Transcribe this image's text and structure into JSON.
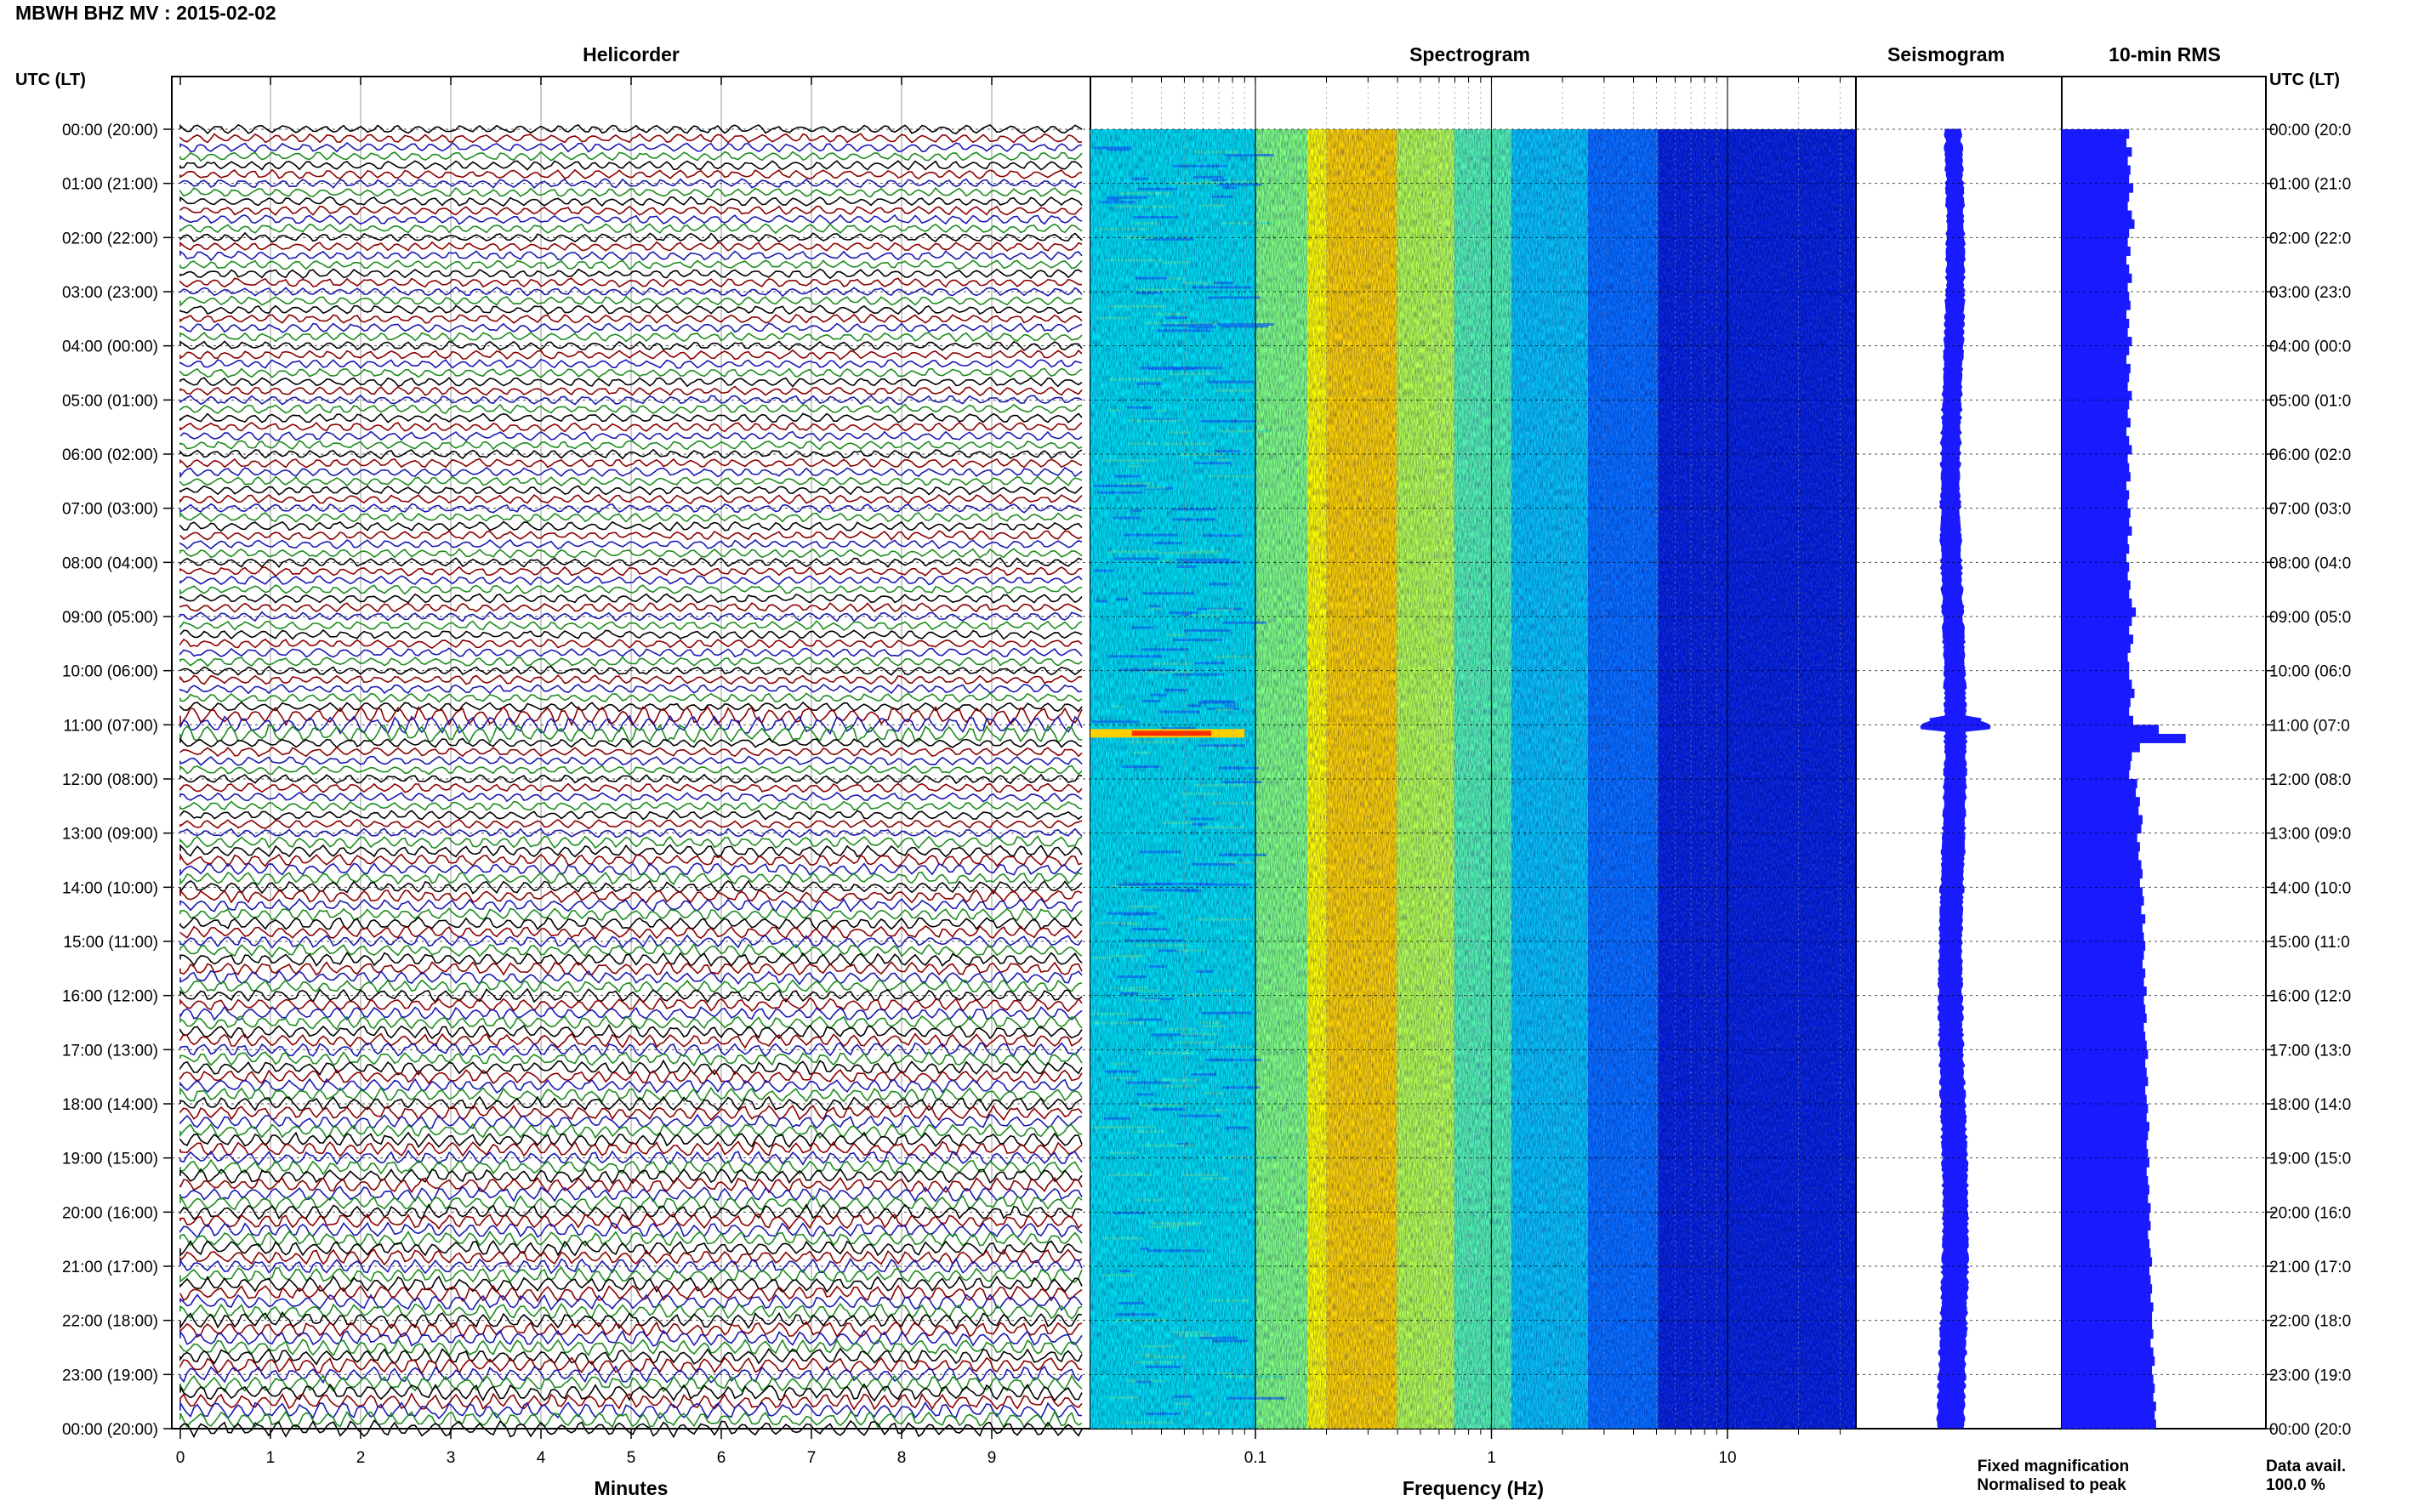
{
  "header": {
    "title": "MBWH BHZ MV : 2015-02-02"
  },
  "panels": {
    "helicorder": "Helicorder",
    "spectrogram": "Spectrogram",
    "seismogram": "Seismogram",
    "rms": "10-min RMS"
  },
  "left_axis_title": "UTC (LT)",
  "right_axis_title": "UTC (LT)",
  "time_labels": [
    "00:00 (20:00)",
    "01:00 (21:00)",
    "02:00 (22:00)",
    "03:00 (23:00)",
    "04:00 (00:00)",
    "05:00 (01:00)",
    "06:00 (02:00)",
    "07:00 (03:00)",
    "08:00 (04:00)",
    "09:00 (05:00)",
    "10:00 (06:00)",
    "11:00 (07:00)",
    "12:00 (08:00)",
    "13:00 (09:00)",
    "14:00 (10:00)",
    "15:00 (11:00)",
    "16:00 (12:00)",
    "17:00 (13:00)",
    "18:00 (14:00)",
    "19:00 (15:00)",
    "20:00 (16:00)",
    "21:00 (17:00)",
    "22:00 (18:00)",
    "23:00 (19:00)",
    "00:00 (20:00)"
  ],
  "right_time_labels": [
    "00:00 (20:0",
    "01:00 (21:0",
    "02:00 (22:0",
    "03:00 (23:0",
    "04:00 (00:0",
    "05:00 (01:0",
    "06:00 (02:0",
    "07:00 (03:0",
    "08:00 (04:0",
    "09:00 (05:0",
    "10:00 (06:0",
    "11:00 (07:0",
    "12:00 (08:0",
    "13:00 (09:0",
    "14:00 (10:0",
    "15:00 (11:0",
    "16:00 (12:0",
    "17:00 (13:0",
    "18:00 (14:0",
    "19:00 (15:0",
    "20:00 (16:0",
    "21:00 (17:0",
    "22:00 (18:0",
    "23:00 (19:0",
    "00:00 (20:0"
  ],
  "footer": {
    "minutes_label": "Minutes",
    "frequency_label": "Frequency (Hz)",
    "fixed_magnification": "Fixed magnification",
    "normalised_to_peak": "Normalised to peak",
    "data_avail_label": "Data avail.",
    "data_avail_value": "100.0 %"
  },
  "colors": {
    "trace_cycle": [
      "#000000",
      "#8b0000",
      "#1a1ab0",
      "#1f8c1f"
    ],
    "seismogram": "#1a1aff",
    "rms": "#1a1aff",
    "fixed_magnification": "#1a1aff",
    "normalised_to_peak": "#ff0000"
  },
  "chart_data": [
    {
      "type": "line",
      "panel": "Helicorder",
      "x_ticks": [
        "0",
        "1",
        "2",
        "3",
        "4",
        "5",
        "6",
        "7",
        "8",
        "9"
      ],
      "xlim": [
        0,
        10
      ],
      "xlabel": "Minutes",
      "traces_per_hour": 6,
      "hours": 24,
      "event": {
        "time_utc": "11:00",
        "note": "larger amplitude traces"
      }
    },
    {
      "type": "heatmap",
      "panel": "Spectrogram",
      "x_scale": "log",
      "x_ticks": [
        "0.1",
        "1",
        "10"
      ],
      "xlim": [
        0.02,
        35
      ],
      "xlabel": "Frequency (Hz)",
      "colormap": [
        "#0000a0",
        "#0030ff",
        "#0090ff",
        "#00e0f0",
        "#80ff80",
        "#ffff00",
        "#ff9000",
        "#ff0000"
      ],
      "peak_band_hz": [
        0.2,
        0.35
      ],
      "event": {
        "time_utc": "11:00",
        "freq_hz": [
          0.03,
          0.06
        ]
      }
    },
    {
      "type": "line",
      "panel": "Seismogram",
      "event_time_utc": "11:00"
    },
    {
      "type": "bar",
      "panel": "10-min RMS",
      "orientation": "horizontal",
      "bin_minutes": 10,
      "values": [
        0.5,
        0.48,
        0.52,
        0.49,
        0.51,
        0.5,
        0.53,
        0.5,
        0.49,
        0.52,
        0.54,
        0.5,
        0.49,
        0.51,
        0.48,
        0.5,
        0.52,
        0.49,
        0.5,
        0.51,
        0.48,
        0.5,
        0.49,
        0.52,
        0.5,
        0.48,
        0.51,
        0.5,
        0.49,
        0.52,
        0.5,
        0.49,
        0.51,
        0.48,
        0.5,
        0.52,
        0.49,
        0.5,
        0.51,
        0.48,
        0.5,
        0.49,
        0.51,
        0.5,
        0.52,
        0.49,
        0.5,
        0.48,
        0.5,
        0.49,
        0.51,
        0.5,
        0.52,
        0.55,
        0.52,
        0.5,
        0.53,
        0.51,
        0.49,
        0.5,
        0.5,
        0.52,
        0.54,
        0.51,
        0.5,
        0.53,
        0.72,
        0.92,
        0.58,
        0.52,
        0.51,
        0.5,
        0.56,
        0.55,
        0.58,
        0.57,
        0.6,
        0.59,
        0.56,
        0.58,
        0.57,
        0.59,
        0.6,
        0.58,
        0.6,
        0.61,
        0.59,
        0.62,
        0.6,
        0.61,
        0.62,
        0.61,
        0.6,
        0.62,
        0.61,
        0.63,
        0.61,
        0.62,
        0.63,
        0.61,
        0.62,
        0.63,
        0.64,
        0.62,
        0.63,
        0.64,
        0.62,
        0.63,
        0.64,
        0.63,
        0.65,
        0.64,
        0.63,
        0.64,
        0.65,
        0.63,
        0.64,
        0.65,
        0.64,
        0.66,
        0.65,
        0.66,
        0.64,
        0.65,
        0.66,
        0.67,
        0.65,
        0.66,
        0.67,
        0.66,
        0.68,
        0.67,
        0.67,
        0.68,
        0.66,
        0.68,
        0.69,
        0.67,
        0.68,
        0.69,
        0.68,
        0.7,
        0.69,
        0.7
      ]
    }
  ]
}
